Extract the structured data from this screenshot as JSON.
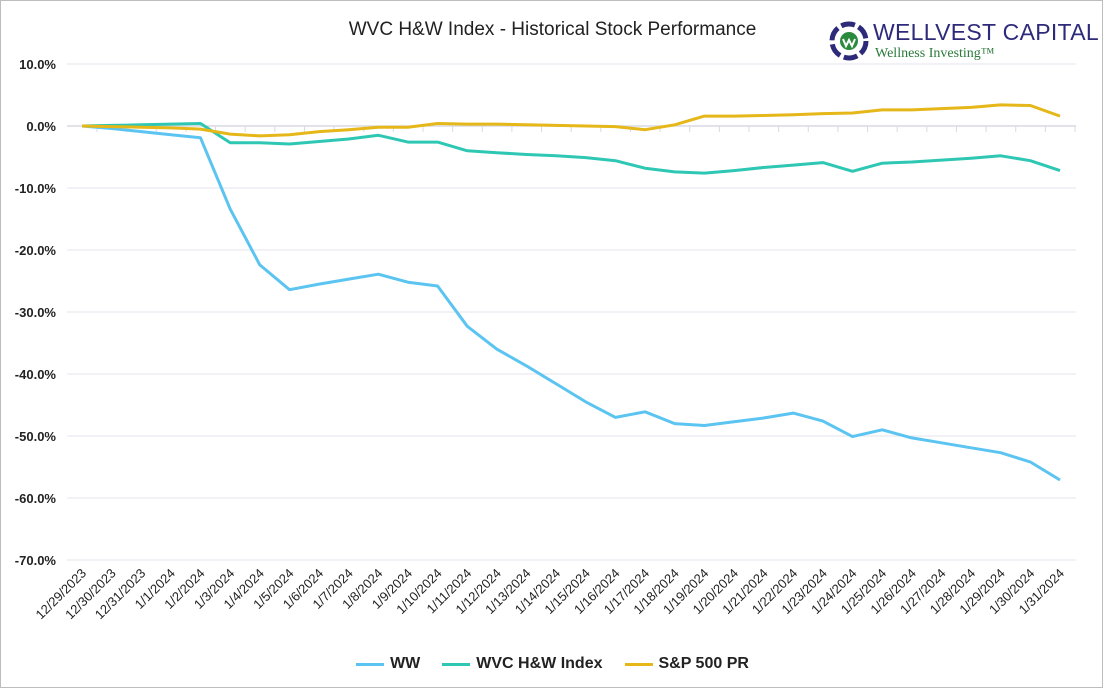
{
  "chart_data": {
    "type": "line",
    "title": "WVC H&W Index - Historical Stock Performance",
    "xlabel": "",
    "ylabel": "",
    "ylim": [
      -70,
      10
    ],
    "yticks": [
      "10.0%",
      "0.0%",
      "-10.0%",
      "-20.0%",
      "-30.0%",
      "-40.0%",
      "-50.0%",
      "-60.0%",
      "-70.0%"
    ],
    "ytick_values": [
      10,
      0,
      -10,
      -20,
      -30,
      -40,
      -50,
      -60,
      -70
    ],
    "grid": true,
    "legend_position": "bottom",
    "x": [
      "12/29/2023",
      "12/30/2023",
      "12/31/2023",
      "1/1/2024",
      "1/2/2024",
      "1/3/2024",
      "1/4/2024",
      "1/5/2024",
      "1/6/2024",
      "1/7/2024",
      "1/8/2024",
      "1/9/2024",
      "1/10/2024",
      "1/11/2024",
      "1/12/2024",
      "1/13/2024",
      "1/14/2024",
      "1/15/2024",
      "1/16/2024",
      "1/17/2024",
      "1/18/2024",
      "1/19/2024",
      "1/20/2024",
      "1/21/2024",
      "1/22/2024",
      "1/23/2024",
      "1/24/2024",
      "1/25/2024",
      "1/26/2024",
      "1/27/2024",
      "1/28/2024",
      "1/29/2024",
      "1/30/2024",
      "1/31/2024"
    ],
    "series": [
      {
        "name": "WW",
        "color": "#5BC4F1",
        "values": [
          0,
          -0.4,
          -0.9,
          -1.4,
          -1.9,
          -13.4,
          -22.4,
          -26.4,
          -25.5,
          -24.7,
          -23.9,
          -25.2,
          -25.8,
          -32.3,
          -36.0,
          -38.7,
          -41.6,
          -44.5,
          -47.0,
          -46.1,
          -48.0,
          -48.3,
          -47.7,
          -47.1,
          -46.3,
          -47.6,
          -50.1,
          -49.0,
          -50.3,
          -51.1,
          -51.9,
          -52.7,
          -54.2,
          -57.1
        ]
      },
      {
        "name": "WVC H&W Index",
        "color": "#2EC7B3",
        "values": [
          0,
          0.1,
          0.2,
          0.3,
          0.4,
          -2.7,
          -2.7,
          -2.9,
          -2.5,
          -2.1,
          -1.5,
          -2.6,
          -2.6,
          -4.0,
          -4.3,
          -4.6,
          -4.8,
          -5.1,
          -5.6,
          -6.8,
          -7.4,
          -7.6,
          -7.2,
          -6.7,
          -6.3,
          -5.9,
          -7.3,
          -6.0,
          -5.8,
          -5.5,
          -5.2,
          -4.8,
          -5.6,
          -7.2
        ]
      },
      {
        "name": "S&P 500 PR",
        "color": "#E5B719",
        "values": [
          0,
          -0.1,
          -0.2,
          -0.3,
          -0.5,
          -1.3,
          -1.6,
          -1.4,
          -0.9,
          -0.6,
          -0.2,
          -0.2,
          0.4,
          0.3,
          0.3,
          0.2,
          0.1,
          0.0,
          -0.1,
          -0.6,
          0.2,
          1.6,
          1.6,
          1.7,
          1.8,
          2.0,
          2.1,
          2.6,
          2.6,
          2.8,
          3.0,
          3.4,
          3.3,
          1.6
        ]
      }
    ]
  },
  "logo": {
    "name": "WELLVEST CAPITAL",
    "tagline": "Wellness Investing™"
  }
}
